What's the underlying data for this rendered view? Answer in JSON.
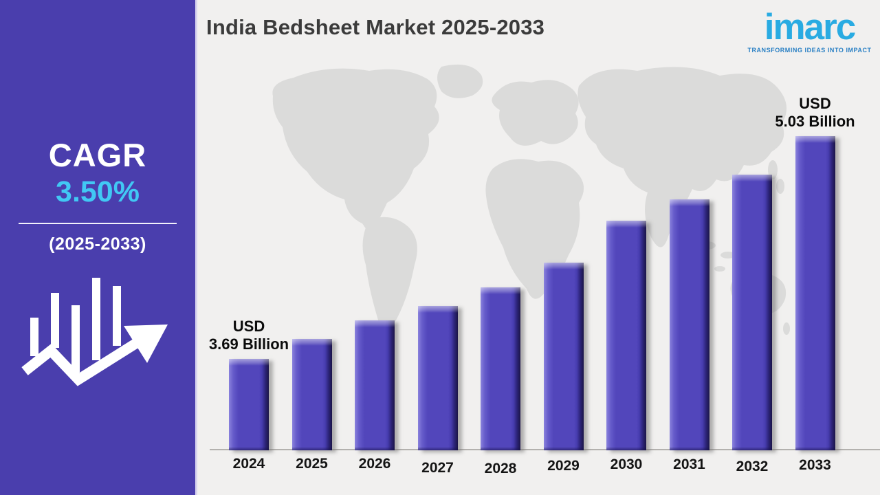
{
  "header": {
    "title": "India Bedsheet Market 2025-2033"
  },
  "logo": {
    "brand": "imarc",
    "tagline": "TRANSFORMING IDEAS INTO IMPACT",
    "brand_color": "#29abe2",
    "tagline_color": "#2a80c4"
  },
  "sidebar": {
    "cagr_label": "CAGR",
    "cagr_value": "3.50%",
    "period": "(2025-2033)",
    "background": "#4a3ead",
    "value_color": "#41c8f4",
    "icon": "growth-chart-arrow-icon"
  },
  "chart_data": {
    "type": "bar",
    "title": "India Bedsheet Market 2025-2033",
    "unit": "USD Billion",
    "categories": [
      "2024",
      "2025",
      "2026",
      "2027",
      "2028",
      "2029",
      "2030",
      "2031",
      "2032",
      "2033"
    ],
    "values": [
      3.69,
      3.81,
      3.92,
      4.01,
      4.12,
      4.27,
      4.52,
      4.65,
      4.8,
      5.03
    ],
    "values_note": "Only 2024 (USD 3.69 Billion) and 2033 (USD 5.03 Billion) are labeled in the image; intermediate values estimated from bar heights",
    "labeled_points": [
      {
        "category": "2024",
        "line1": "USD",
        "line2": "3.69 Billion"
      },
      {
        "category": "2033",
        "line1": "USD",
        "line2": "5.03 Billion"
      }
    ],
    "bar_color": "#5246bb",
    "xlabel": "",
    "ylabel": "",
    "grid": false,
    "legend": "none",
    "y_axis_visible": false
  }
}
